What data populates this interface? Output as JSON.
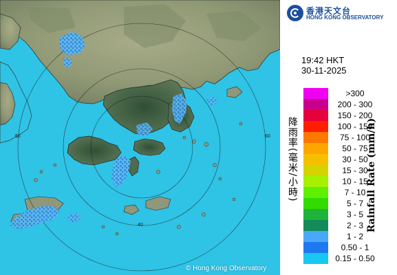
{
  "header": {
    "logo_cn": "香港天文台",
    "logo_en": "HONG KONG OBSERVATORY",
    "time": "19:42 HKT",
    "date": "30-11-2025"
  },
  "legend": {
    "title_cn": "降雨率(毫米/小時)",
    "title_en": "Rainfall Rate (mm/h)",
    "items": [
      {
        "label": ">300",
        "color": "#f000f0"
      },
      {
        "label": "200 - 300",
        "color": "#c8008c"
      },
      {
        "label": "150 - 200",
        "color": "#e6003c"
      },
      {
        "label": "100 - 150",
        "color": "#ff1e00"
      },
      {
        "label": "75 - 100",
        "color": "#ff7800"
      },
      {
        "label": "50 - 75",
        "color": "#fea600"
      },
      {
        "label": "30 - 50",
        "color": "#f5c000"
      },
      {
        "label": "15 - 30",
        "color": "#d4d400"
      },
      {
        "label": "10 - 15",
        "color": "#a6f000"
      },
      {
        "label": "7 - 10",
        "color": "#5ef000"
      },
      {
        "label": "5 - 7",
        "color": "#32dc00"
      },
      {
        "label": "3 - 5",
        "color": "#1eb43c"
      },
      {
        "label": "2 - 3",
        "color": "#148c5a"
      },
      {
        "label": "1 - 2",
        "color": "#4aa8f8"
      },
      {
        "label": "0.50 - 1",
        "color": "#1e78f0"
      },
      {
        "label": "0.15 - 0.50",
        "color": "#18c8f0"
      }
    ]
  },
  "map": {
    "range_ring_label": "40",
    "outer_ring_label": "60",
    "copyright": "© Hong Kong Observatory",
    "colors": {
      "sea": "#2fc3e6",
      "land_dark": "#3f6646",
      "land_light": "#9aa27d",
      "rain_light": "#5bb7ef",
      "rain_mid": "#2e7ad6"
    }
  }
}
